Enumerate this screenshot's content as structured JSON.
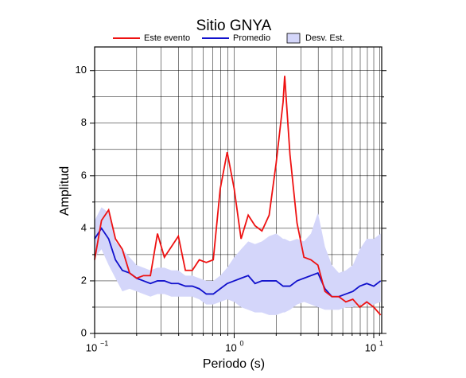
{
  "chart_data": {
    "type": "line",
    "title": "Sitio GNYA",
    "xlabel": "Periodo (s)",
    "ylabel": "Amplitud",
    "xscale": "log",
    "grid": true,
    "xlim": [
      0.1,
      11.4
    ],
    "ylim": [
      0,
      10.9
    ],
    "xticks": [
      {
        "value": 0.1,
        "label": "10",
        "exponent": "−1"
      },
      {
        "value": 1,
        "label": "10",
        "exponent": "0"
      },
      {
        "value": 10,
        "label": "10",
        "exponent": "1"
      }
    ],
    "xminor": [
      0.2,
      0.3,
      0.4,
      0.5,
      0.6,
      0.7,
      0.8,
      0.9,
      2,
      3,
      4,
      5,
      6,
      7,
      8,
      9,
      11
    ],
    "yticks": [
      0,
      2,
      4,
      6,
      8,
      10
    ],
    "yminor": [
      1,
      3,
      5,
      7,
      9
    ],
    "x": [
      0.1,
      0.112,
      0.126,
      0.141,
      0.158,
      0.178,
      0.2,
      0.224,
      0.251,
      0.282,
      0.316,
      0.355,
      0.398,
      0.447,
      0.501,
      0.562,
      0.631,
      0.708,
      0.794,
      0.891,
      1.0,
      1.12,
      1.26,
      1.41,
      1.58,
      1.78,
      2.0,
      2.24,
      2.3,
      2.51,
      2.82,
      3.16,
      3.55,
      3.98,
      4.47,
      5.01,
      5.62,
      6.31,
      7.08,
      7.94,
      8.91,
      10.0,
      11.2
    ],
    "band": {
      "name": "Desv. Est.",
      "color": "#d4d6fa",
      "lower": [
        2.9,
        3.2,
        2.6,
        2.1,
        1.6,
        1.7,
        1.6,
        1.5,
        1.4,
        1.5,
        1.5,
        1.4,
        1.4,
        1.4,
        1.4,
        1.3,
        1.1,
        1.1,
        1.2,
        1.3,
        1.2,
        1.0,
        0.9,
        0.8,
        0.8,
        0.7,
        0.7,
        0.8,
        0.8,
        0.9,
        1.1,
        1.2,
        1.1,
        1.0,
        0.9,
        0.9,
        0.9,
        1.0,
        1.0,
        1.1,
        1.1,
        1.1,
        1.2
      ],
      "upper": [
        4.3,
        4.8,
        4.6,
        3.5,
        3.2,
        2.9,
        2.6,
        2.5,
        2.4,
        2.5,
        2.5,
        2.4,
        2.4,
        2.2,
        2.2,
        2.1,
        2.0,
        2.0,
        2.2,
        2.5,
        2.9,
        3.2,
        3.5,
        3.4,
        3.5,
        3.7,
        3.8,
        3.6,
        3.6,
        3.5,
        3.6,
        3.5,
        3.8,
        4.6,
        3.3,
        2.6,
        2.3,
        2.4,
        2.6,
        3.2,
        3.6,
        3.6,
        3.8
      ]
    },
    "series": [
      {
        "name": "Este evento",
        "color": "#ee1111",
        "values": [
          2.8,
          4.3,
          4.7,
          3.6,
          3.2,
          2.3,
          2.1,
          2.2,
          2.2,
          3.8,
          2.9,
          3.3,
          3.7,
          2.4,
          2.4,
          2.8,
          2.7,
          2.8,
          5.5,
          6.9,
          5.5,
          3.6,
          4.5,
          4.1,
          3.9,
          4.5,
          6.5,
          8.8,
          9.8,
          6.8,
          4.2,
          2.9,
          2.8,
          2.6,
          1.6,
          1.4,
          1.4,
          1.2,
          1.3,
          1.0,
          1.2,
          1.0,
          0.7
        ]
      },
      {
        "name": "Promedio",
        "color": "#1111cc",
        "values": [
          3.6,
          4.0,
          3.6,
          2.8,
          2.4,
          2.3,
          2.1,
          2.0,
          1.9,
          2.0,
          2.0,
          1.9,
          1.9,
          1.8,
          1.8,
          1.7,
          1.5,
          1.5,
          1.7,
          1.9,
          2.0,
          2.1,
          2.2,
          1.9,
          2.0,
          2.0,
          2.0,
          1.8,
          1.8,
          1.8,
          2.0,
          2.1,
          2.2,
          2.3,
          1.7,
          1.4,
          1.4,
          1.5,
          1.6,
          1.8,
          1.9,
          1.8,
          2.0
        ]
      }
    ]
  }
}
